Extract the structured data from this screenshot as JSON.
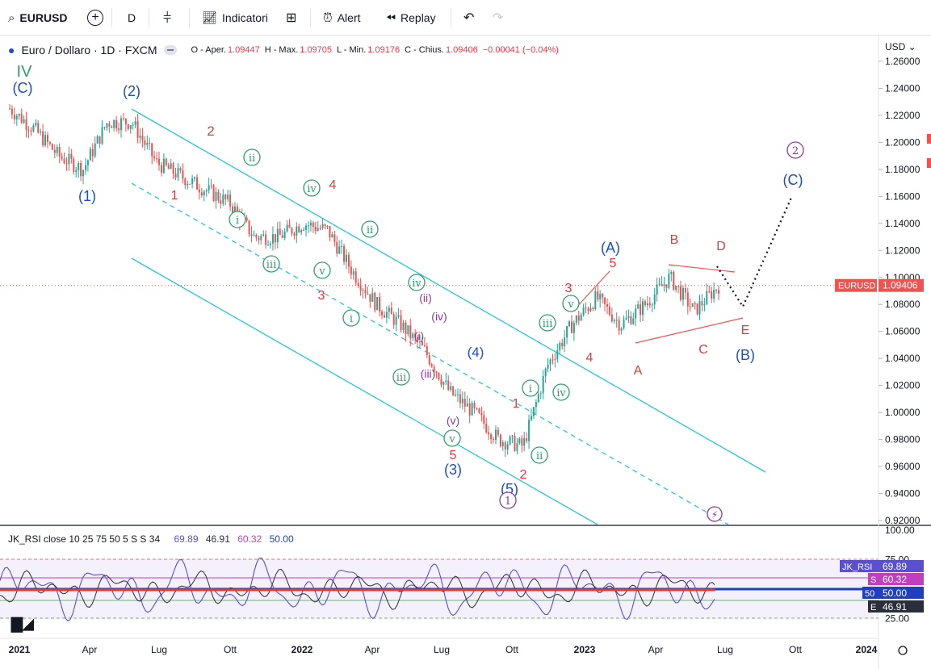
{
  "toolbar": {
    "symbol": "EURUSD",
    "interval": "D",
    "indicators_label": "Indicatori",
    "alert_label": "Alert",
    "replay_label": "Replay",
    "icons": [
      "search-icon",
      "add-symbol-icon",
      "bar-type-icon",
      "indicators-icon",
      "templates-icon",
      "alert-icon",
      "replay-icon",
      "undo-icon",
      "redo-icon"
    ]
  },
  "legend": {
    "title": "Euro / Dollaro · 1D · FXCM",
    "open_label": "O - Aper.",
    "open": "1.09447",
    "high_label": "H - Max.",
    "high": "1.09705",
    "low_label": "L - Min.",
    "low": "1.09176",
    "close_label": "C - Chius.",
    "close": "1.09406",
    "change": "−0.00041 (−0.04%)"
  },
  "price_scale": {
    "currency": "USD",
    "ticks": [
      "1.26000",
      "1.24000",
      "1.22000",
      "1.20000",
      "1.18000",
      "1.16000",
      "1.14000",
      "1.12000",
      "1.10000",
      "1.08000",
      "1.06000",
      "1.04000",
      "1.02000",
      "1.00000",
      "0.98000",
      "0.96000",
      "0.94000",
      "0.92000"
    ],
    "last_label": "EURUSD",
    "last_value": "1.09406"
  },
  "time_axis": [
    "2021",
    "Apr",
    "Lug",
    "Ott",
    "2022",
    "Apr",
    "Lug",
    "Ott",
    "2023",
    "Apr",
    "Lug",
    "Ott",
    "2024"
  ],
  "rsi": {
    "legend": "JK_RSI close 10 25 75 50 5 S S 34",
    "values": [
      "69.89",
      "46.91",
      "60.32",
      "50.00"
    ],
    "scale_ticks": [
      "100.00",
      "75.00",
      "25.00"
    ],
    "labels": [
      {
        "tag": "JK_RSI",
        "value": "69.89",
        "color": "#5b4fcf"
      },
      {
        "tag": "S",
        "value": "60.32",
        "color": "#c03fc0"
      },
      {
        "tag": "50",
        "value": "50.00",
        "color": "#1e3fbf"
      },
      {
        "tag": "E",
        "value": "46.91",
        "color": "#2a2e39"
      }
    ]
  },
  "colors": {
    "up": "#26a69a",
    "down": "#ef5350",
    "channel": "#26c6da",
    "wave_green": "#2e9e6e",
    "wave_red": "#e53935",
    "wave_blue": "#1e4fc2",
    "wave_purple": "#8e3aa0"
  },
  "wave_labels": [
    {
      "text": "IV",
      "color": "green"
    },
    {
      "text": "(C)",
      "color": "blue"
    },
    {
      "text": "(2)",
      "color": "blue"
    },
    {
      "text": "(1)",
      "color": "blue"
    },
    {
      "text": "2",
      "color": "red"
    },
    {
      "text": "1",
      "color": "red"
    },
    {
      "text": "ii",
      "color": "green",
      "circle": true
    },
    {
      "text": "i",
      "color": "green",
      "circle": true
    },
    {
      "text": "iii",
      "color": "green",
      "circle": true
    },
    {
      "text": "iv",
      "color": "green",
      "circle": true
    },
    {
      "text": "4",
      "color": "red"
    },
    {
      "text": "v",
      "color": "green",
      "circle": true
    },
    {
      "text": "3",
      "color": "red"
    },
    {
      "text": "ii",
      "color": "green",
      "circle": true
    },
    {
      "text": "i",
      "color": "green",
      "circle": true
    },
    {
      "text": "iv",
      "color": "green",
      "circle": true
    },
    {
      "text": "(ii)",
      "color": "purple"
    },
    {
      "text": "(iv)",
      "color": "purple"
    },
    {
      "text": "(i)",
      "color": "purple"
    },
    {
      "text": "iii",
      "color": "green",
      "circle": true
    },
    {
      "text": "(iii)",
      "color": "purple"
    },
    {
      "text": "(4)",
      "color": "blue"
    },
    {
      "text": "(v)",
      "color": "purple"
    },
    {
      "text": "v",
      "color": "green",
      "circle": true
    },
    {
      "text": "5",
      "color": "red"
    },
    {
      "text": "(3)",
      "color": "blue"
    },
    {
      "text": "1",
      "color": "red"
    },
    {
      "text": "i",
      "color": "green",
      "circle": true
    },
    {
      "text": "2",
      "color": "red"
    },
    {
      "text": "ii",
      "color": "green",
      "circle": true
    },
    {
      "text": "(5)",
      "color": "blue"
    },
    {
      "text": "1",
      "color": "purple",
      "circle": true
    },
    {
      "text": "iv",
      "color": "green",
      "circle": true
    },
    {
      "text": "iii",
      "color": "green",
      "circle": true
    },
    {
      "text": "v",
      "color": "green",
      "circle": true
    },
    {
      "text": "3",
      "color": "red"
    },
    {
      "text": "4",
      "color": "red"
    },
    {
      "text": "(A)",
      "color": "blue"
    },
    {
      "text": "5",
      "color": "red"
    },
    {
      "text": "A",
      "color": "red"
    },
    {
      "text": "B",
      "color": "red"
    },
    {
      "text": "C",
      "color": "red"
    },
    {
      "text": "D",
      "color": "red"
    },
    {
      "text": "E",
      "color": "red"
    },
    {
      "text": "(B)",
      "color": "blue"
    },
    {
      "text": "(C)",
      "color": "blue"
    },
    {
      "text": "2",
      "color": "purple",
      "circle": true
    }
  ],
  "chart_data": {
    "type": "line",
    "title": "Euro / Dollaro · 1D · FXCM",
    "ylim": [
      0.912,
      1.268
    ],
    "x": [
      "2021-01",
      "2021-02",
      "2021-03",
      "2021-04",
      "2021-05",
      "2021-06",
      "2021-07",
      "2021-08",
      "2021-09",
      "2021-10",
      "2021-11",
      "2021-12",
      "2022-01",
      "2022-02",
      "2022-03",
      "2022-04",
      "2022-05",
      "2022-06",
      "2022-07",
      "2022-08",
      "2022-09",
      "2022-10",
      "2022-11",
      "2022-12",
      "2023-01",
      "2023-02",
      "2023-03",
      "2023-04",
      "2023-05",
      "2023-06"
    ],
    "series": [
      {
        "values": [
          1.225,
          1.21,
          1.19,
          1.18,
          1.215,
          1.215,
          1.185,
          1.175,
          1.165,
          1.155,
          1.13,
          1.13,
          1.14,
          1.135,
          1.105,
          1.08,
          1.065,
          1.045,
          1.015,
          1.0,
          0.98,
          0.975,
          1.035,
          1.065,
          1.085,
          1.065,
          1.08,
          1.1,
          1.075,
          1.094
        ]
      }
    ],
    "rsi_ylim": [
      0,
      100
    ]
  }
}
